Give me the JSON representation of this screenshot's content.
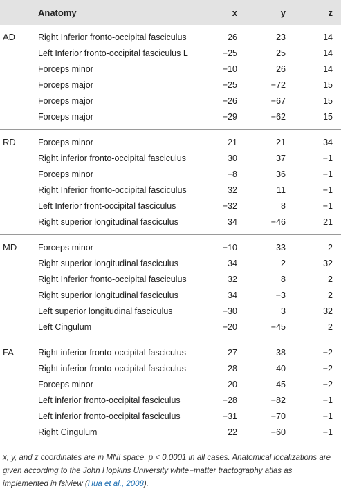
{
  "header": {
    "col1": "",
    "anatomy": "Anatomy",
    "x": "x",
    "y": "y",
    "z": "z"
  },
  "groups": [
    {
      "label": "AD",
      "rows": [
        {
          "anatomy": "Right Inferior fronto-occipital fasciculus",
          "x": "26",
          "y": "23",
          "z": "14"
        },
        {
          "anatomy": "Left Inferior fronto-occipital fasciculus L",
          "x": "−25",
          "y": "25",
          "z": "14"
        },
        {
          "anatomy": "Forceps minor",
          "x": "−10",
          "y": "26",
          "z": "14"
        },
        {
          "anatomy": "Forceps major",
          "x": "−25",
          "y": "−72",
          "z": "15"
        },
        {
          "anatomy": "Forceps major",
          "x": "−26",
          "y": "−67",
          "z": "15"
        },
        {
          "anatomy": "Forceps major",
          "x": "−29",
          "y": "−62",
          "z": "15"
        }
      ]
    },
    {
      "label": "RD",
      "rows": [
        {
          "anatomy": "Forceps minor",
          "x": "21",
          "y": "21",
          "z": "34"
        },
        {
          "anatomy": "Right inferior fronto-occipital fasciculus",
          "x": "30",
          "y": "37",
          "z": "−1"
        },
        {
          "anatomy": "Forceps minor",
          "x": "−8",
          "y": "36",
          "z": "−1"
        },
        {
          "anatomy": "Right Inferior fronto-occipital fasciculus",
          "x": "32",
          "y": "11",
          "z": "−1"
        },
        {
          "anatomy": "Left Inferior front-occipital fasciculus",
          "x": "−32",
          "y": "8",
          "z": "−1"
        },
        {
          "anatomy": "Right superior longitudinal fasciculus",
          "x": "34",
          "y": "−46",
          "z": "21"
        }
      ]
    },
    {
      "label": "MD",
      "rows": [
        {
          "anatomy": "Forceps minor",
          "x": "−10",
          "y": "33",
          "z": "2"
        },
        {
          "anatomy": "Right superior longitudinal fasciculus",
          "x": "34",
          "y": "2",
          "z": "32"
        },
        {
          "anatomy": "Right Inferior fronto-occipital fasciculus",
          "x": "32",
          "y": "8",
          "z": "2"
        },
        {
          "anatomy": "Right superior longitudinal fasciculus",
          "x": "34",
          "y": "−3",
          "z": "2"
        },
        {
          "anatomy": "Left superior longitudinal fasciculus",
          "x": "−30",
          "y": "3",
          "z": "32"
        },
        {
          "anatomy": "Left Cingulum",
          "x": "−20",
          "y": "−45",
          "z": "2"
        }
      ]
    },
    {
      "label": "FA",
      "rows": [
        {
          "anatomy": "Right inferior fronto-occipital fasciculus",
          "x": "27",
          "y": "38",
          "z": "−2"
        },
        {
          "anatomy": "Right inferior fronto-occipital fasciculus",
          "x": "28",
          "y": "40",
          "z": "−2"
        },
        {
          "anatomy": "Forceps minor",
          "x": "20",
          "y": "45",
          "z": "−2"
        },
        {
          "anatomy": "Left inferior fronto-occipital fasciculus",
          "x": "−28",
          "y": "−82",
          "z": "−1"
        },
        {
          "anatomy": "Left inferior fronto-occipital fasciculus",
          "x": "−31",
          "y": "−70",
          "z": "−1"
        },
        {
          "anatomy": "Right Cingulum",
          "x": "22",
          "y": "−60",
          "z": "−1"
        }
      ]
    }
  ],
  "footnote": {
    "text_before": "x, y, and z coordinates are in MNI space. p < 0.0001 in all cases. Anatomical localizations are given according to the John Hopkins University white−matter tractography atlas as implemented in fslview (",
    "citation": "Hua et al., 2008",
    "text_after": ")."
  }
}
